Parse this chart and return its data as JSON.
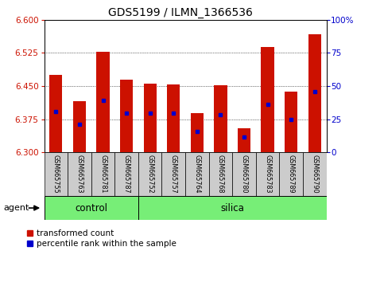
{
  "title": "GDS5199 / ILMN_1366536",
  "samples": [
    "GSM665755",
    "GSM665763",
    "GSM665781",
    "GSM665787",
    "GSM665752",
    "GSM665757",
    "GSM665764",
    "GSM665768",
    "GSM665780",
    "GSM665783",
    "GSM665789",
    "GSM665790"
  ],
  "bar_values": [
    6.475,
    6.415,
    6.528,
    6.465,
    6.455,
    6.453,
    6.388,
    6.451,
    6.355,
    6.538,
    6.438,
    6.568
  ],
  "bar_bottom": 6.3,
  "percentile_values": [
    6.393,
    6.364,
    6.418,
    6.388,
    6.388,
    6.388,
    6.348,
    6.385,
    6.335,
    6.408,
    6.375,
    6.438
  ],
  "ylim": [
    6.3,
    6.6
  ],
  "yticks": [
    6.3,
    6.375,
    6.45,
    6.525,
    6.6
  ],
  "y2ticks": [
    0,
    25,
    50,
    75,
    100
  ],
  "y2tick_labels": [
    "0",
    "25",
    "50",
    "75",
    "100%"
  ],
  "bar_color": "#cc1100",
  "dot_color": "#0000cc",
  "control_samples": 4,
  "silica_samples": 8,
  "control_label": "control",
  "silica_label": "silica",
  "agent_label": "agent",
  "legend_red": "transformed count",
  "legend_blue": "percentile rank within the sample",
  "group_color": "#77ee77",
  "tick_bg": "#cccccc",
  "bar_width": 0.55
}
